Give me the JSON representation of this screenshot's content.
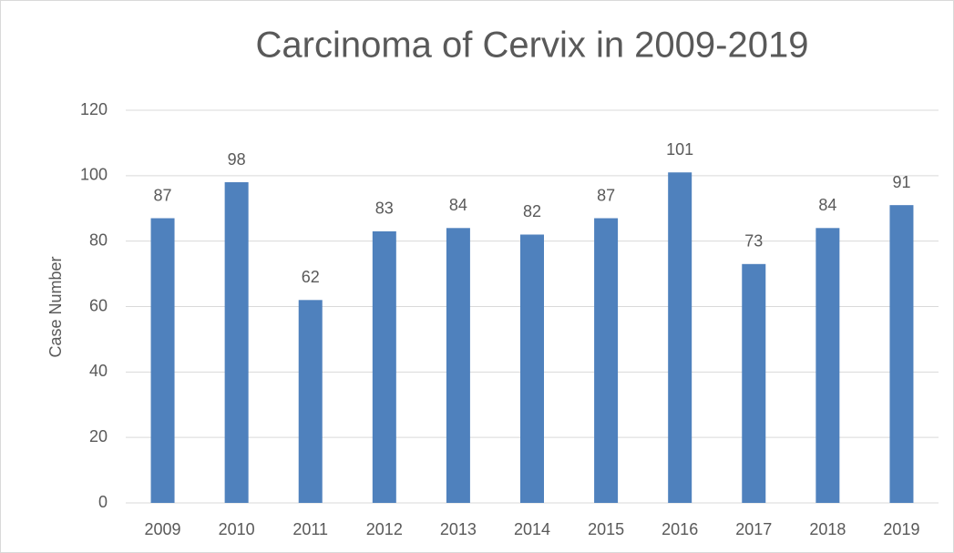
{
  "chart_data": {
    "type": "bar",
    "title": "Carcinoma of Cervix in 2009-2019",
    "y_label": "Case Number",
    "categories": [
      "2009",
      "2010",
      "2011",
      "2012",
      "2013",
      "2014",
      "2015",
      "2016",
      "2017",
      "2018",
      "2019"
    ],
    "values": [
      87,
      98,
      62,
      83,
      84,
      82,
      87,
      101,
      73,
      84,
      91
    ],
    "color": "#4f81bd",
    "ylim": [
      0,
      120
    ],
    "yticks": [
      0,
      20,
      40,
      60,
      80,
      100,
      120
    ],
    "grid": true,
    "data_labels": true
  }
}
